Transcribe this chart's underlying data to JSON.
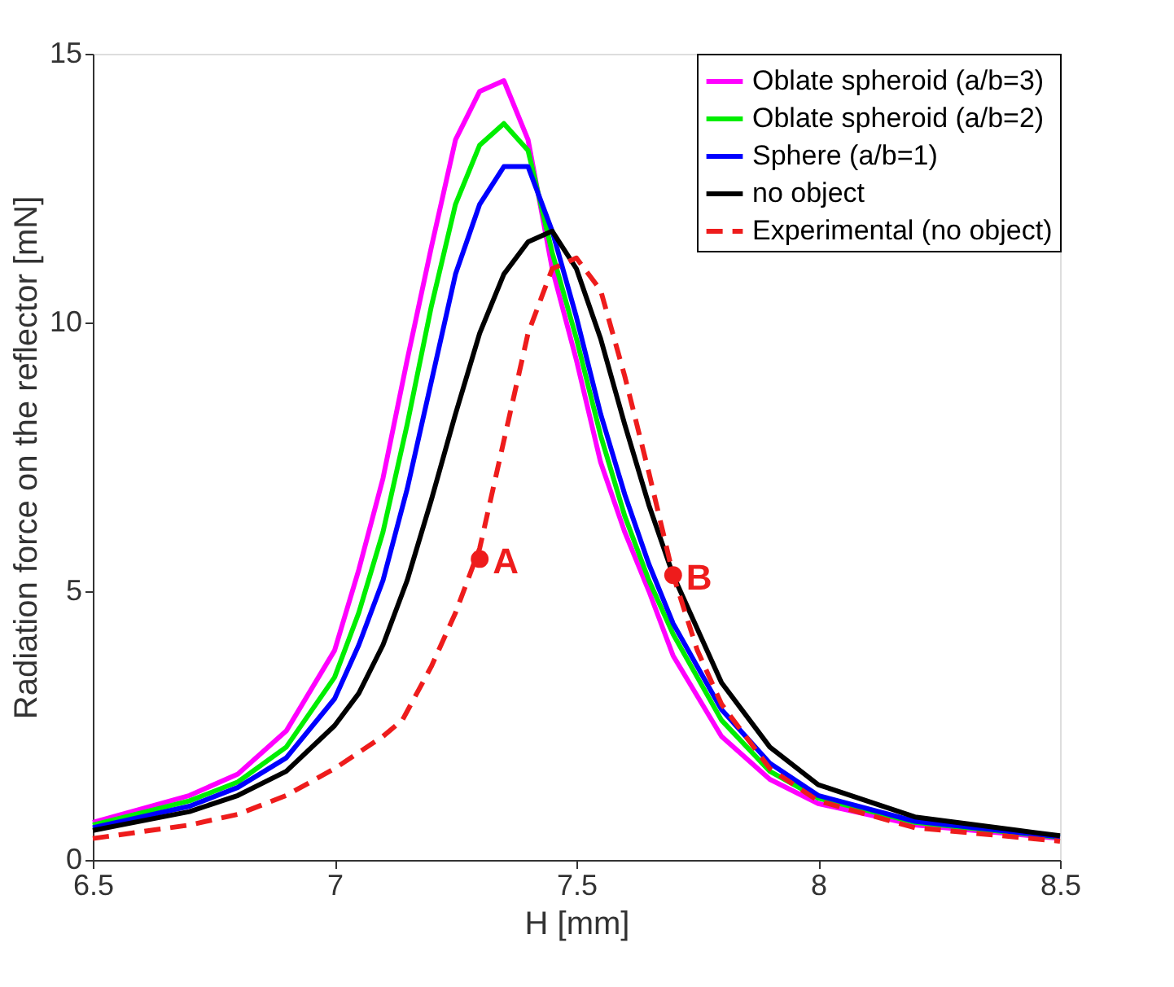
{
  "chart_data": {
    "type": "line",
    "xlabel": "H [mm]",
    "ylabel": "Radiation force on the reflector [mN]",
    "x": [
      6.5,
      6.7,
      6.8,
      6.9,
      7.0,
      7.05,
      7.1,
      7.15,
      7.2,
      7.25,
      7.3,
      7.35,
      7.4,
      7.45,
      7.5,
      7.55,
      7.6,
      7.65,
      7.7,
      7.8,
      7.9,
      8.0,
      8.2,
      8.5
    ],
    "series": [
      {
        "name": "Oblate spheroid (a/b=3)",
        "color": "#ff00ff",
        "line_style": "solid",
        "values": [
          0.7,
          1.2,
          1.6,
          2.4,
          3.9,
          5.4,
          7.1,
          9.3,
          11.4,
          13.4,
          14.3,
          14.5,
          13.4,
          11.0,
          9.3,
          7.4,
          6.1,
          5.0,
          3.8,
          2.3,
          1.5,
          1.05,
          0.65,
          0.4
        ]
      },
      {
        "name": "Oblate spheroid (a/b=2)",
        "color": "#00ee00",
        "line_style": "solid",
        "values": [
          0.65,
          1.1,
          1.45,
          2.1,
          3.4,
          4.6,
          6.1,
          8.1,
          10.3,
          12.2,
          13.3,
          13.7,
          13.2,
          11.3,
          9.7,
          7.9,
          6.4,
          5.2,
          4.2,
          2.6,
          1.65,
          1.15,
          0.7,
          0.42
        ]
      },
      {
        "name": "Sphere (a/b=1)",
        "color": "#0000ff",
        "line_style": "solid",
        "values": [
          0.6,
          1.0,
          1.35,
          1.9,
          3.0,
          4.0,
          5.2,
          6.9,
          8.9,
          10.9,
          12.2,
          12.9,
          12.9,
          11.7,
          10.1,
          8.3,
          6.8,
          5.5,
          4.4,
          2.8,
          1.8,
          1.2,
          0.72,
          0.43
        ]
      },
      {
        "name": "no object",
        "color": "#000000",
        "line_style": "solid",
        "values": [
          0.55,
          0.9,
          1.2,
          1.65,
          2.5,
          3.1,
          4.0,
          5.2,
          6.7,
          8.3,
          9.8,
          10.9,
          11.5,
          11.7,
          11.0,
          9.7,
          8.1,
          6.6,
          5.3,
          3.3,
          2.1,
          1.4,
          0.8,
          0.45
        ]
      },
      {
        "name": "Experimental (no object)",
        "color": "#ee1c1c",
        "line_style": "dashed",
        "x": [
          6.5,
          6.7,
          6.8,
          6.9,
          7.0,
          7.05,
          7.1,
          7.14,
          7.2,
          7.25,
          7.3,
          7.35,
          7.4,
          7.45,
          7.5,
          7.55,
          7.6,
          7.65,
          7.7,
          7.75,
          7.8,
          7.9,
          8.0,
          8.2,
          8.5
        ],
        "values": [
          0.4,
          0.65,
          0.85,
          1.2,
          1.7,
          2.0,
          2.3,
          2.6,
          3.6,
          4.6,
          5.8,
          7.8,
          9.8,
          11.0,
          11.2,
          10.6,
          9.0,
          7.2,
          5.3,
          3.9,
          2.9,
          1.7,
          1.1,
          0.6,
          0.35
        ]
      }
    ],
    "annotations": [
      {
        "text": "A",
        "x": 7.3,
        "y": 5.6
      },
      {
        "text": "B",
        "x": 7.7,
        "y": 5.3
      }
    ],
    "xlim": [
      6.5,
      8.5
    ],
    "xticks": [
      6.5,
      7,
      7.5,
      8,
      8.5
    ],
    "ylim": [
      0,
      15
    ],
    "yticks": [
      0,
      5,
      10,
      15
    ],
    "grid": false,
    "legend": "top right"
  }
}
